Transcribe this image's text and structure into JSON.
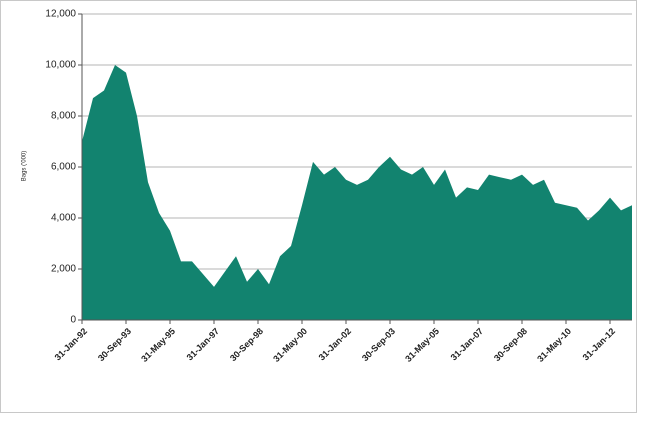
{
  "chart_data": {
    "type": "area",
    "y_label": "Bags ('000)",
    "categories": [
      "31-Jan-92",
      null,
      null,
      null,
      "30-Sep-93",
      null,
      null,
      null,
      "31-May-95",
      null,
      null,
      null,
      "31-Jan-97",
      null,
      null,
      null,
      "30-Sep-98",
      null,
      null,
      null,
      "31-May-00",
      null,
      null,
      null,
      "31-Jan-02",
      null,
      null,
      null,
      "30-Sep-03",
      null,
      null,
      null,
      "31-May-05",
      null,
      null,
      null,
      "31-Jan-07",
      null,
      null,
      null,
      "30-Sep-08",
      null,
      null,
      null,
      "31-May-10",
      null,
      null,
      null,
      "31-Jan-12",
      null,
      null
    ],
    "values": [
      7000,
      8700,
      9000,
      10000,
      9700,
      8000,
      5400,
      4200,
      3500,
      2300,
      2300,
      1800,
      1300,
      1900,
      2500,
      1500,
      2000,
      1400,
      2500,
      2900,
      4500,
      6200,
      5700,
      6000,
      5500,
      5300,
      5500,
      6000,
      6400,
      5900,
      5700,
      6000,
      5300,
      5900,
      4800,
      5200,
      5100,
      5700,
      5600,
      5500,
      5700,
      5300,
      5500,
      4600,
      4500,
      4400,
      3900,
      4300,
      4800,
      4300,
      4500
    ],
    "color": "#12836f",
    "ylim": [
      0,
      12000
    ],
    "yticks": [
      0,
      {
        "value": 2000,
        "label": "2,000"
      },
      {
        "value": 4000,
        "label": "4,000"
      },
      {
        "value": 6000,
        "label": "6,000"
      },
      {
        "value": 8000,
        "label": "8,000"
      },
      {
        "value": 10000,
        "label": "10,000"
      },
      {
        "value": 12000,
        "label": "12,000"
      }
    ],
    "grid": true
  }
}
